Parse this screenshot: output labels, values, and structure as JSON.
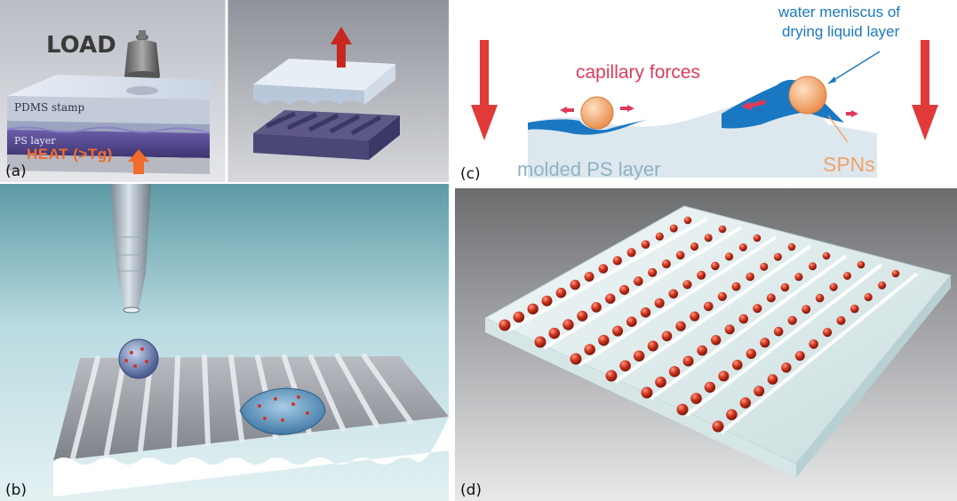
{
  "panel_a": {
    "label": "(a)",
    "load_text": "LOAD",
    "stamp_text": "PDMS stamp",
    "layer_text": "PS layer",
    "heat_text": "HEAT (>Tg)"
  },
  "panel_b": {
    "label": "(b)"
  },
  "panel_c": {
    "label": "(c)",
    "meniscus_line1": "water meniscus of",
    "meniscus_line2": "drying liquid layer",
    "capillary_text": "capillary forces",
    "ps_layer_text": "molded PS layer",
    "spn_text": "SPNs"
  },
  "panel_d": {
    "label": "(d)"
  },
  "colors": {
    "arrow_red": "#e03a3a",
    "water_blue": "#1a78c2",
    "spn_orange": "#f0a36a",
    "heat_orange": "#f26b2a",
    "bead_red": "#c4301c"
  }
}
